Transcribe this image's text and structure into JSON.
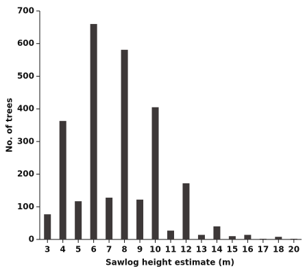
{
  "chart_data": {
    "type": "bar",
    "x_label": "Sawlog height estimate (m)",
    "y_label": "No. of trees",
    "categories": [
      "3",
      "4",
      "5",
      "6",
      "7",
      "8",
      "9",
      "10",
      "11",
      "12",
      "13",
      "14",
      "15",
      "16",
      "17",
      "18",
      "20"
    ],
    "values": [
      77,
      363,
      117,
      660,
      128,
      581,
      122,
      405,
      27,
      172,
      14,
      40,
      10,
      14,
      2,
      8,
      2
    ],
    "color": "#3d3838",
    "ylim": [
      0,
      700
    ],
    "yticks": [
      0,
      100,
      200,
      300,
      400,
      500,
      600,
      700
    ],
    "grid": false
  }
}
